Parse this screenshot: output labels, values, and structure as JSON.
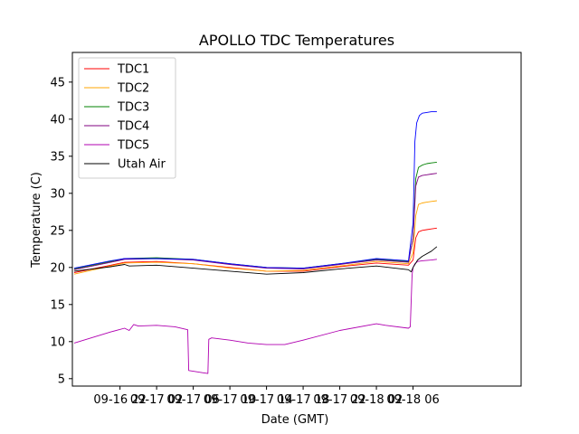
{
  "chart_data": {
    "type": "line",
    "title": "APOLLO TDC Temperatures",
    "xlabel": "Date (GMT)",
    "ylabel": "Temperature (C)",
    "xlim": [
      -5.2,
      43.8
    ],
    "ylim": [
      4,
      49
    ],
    "xticks": [
      {
        "value": 0,
        "label": "09-16 22"
      },
      {
        "value": 4,
        "label": "09-17 02"
      },
      {
        "value": 8,
        "label": "09-17 06"
      },
      {
        "value": 12,
        "label": "09-17 10"
      },
      {
        "value": 16,
        "label": "09-17 14"
      },
      {
        "value": 20,
        "label": "09-17 18"
      },
      {
        "value": 24,
        "label": "09-17 22"
      },
      {
        "value": 28,
        "label": "09-18 02"
      },
      {
        "value": 32,
        "label": "09-18 06"
      }
    ],
    "yticks": [
      5,
      10,
      15,
      20,
      25,
      30,
      35,
      40,
      45
    ],
    "legend_position": "top-left",
    "series": [
      {
        "name": "TDC1",
        "color": "#ff0000",
        "x": [
          -5,
          -1,
          0.5,
          4,
          8,
          12,
          16,
          20,
          24,
          28,
          31.5,
          32,
          32.3,
          32.6,
          33,
          33.5,
          34,
          34.6
        ],
        "y": [
          19.3,
          20.3,
          20.7,
          20.8,
          20.5,
          20,
          19.5,
          19.5,
          20.1,
          20.6,
          20.3,
          21,
          24,
          24.8,
          25,
          25.1,
          25.2,
          25.3
        ]
      },
      {
        "name": "TDC2",
        "color": "#ffa500",
        "x": [
          -5,
          -1,
          0.5,
          4,
          8,
          12,
          16,
          20,
          24,
          28,
          31.5,
          32,
          32.3,
          32.6,
          33,
          33.5,
          34,
          34.6
        ],
        "y": [
          19.1,
          20.2,
          20.6,
          20.7,
          20.5,
          19.9,
          19.5,
          19.6,
          20.2,
          20.8,
          20.5,
          22,
          27,
          28.5,
          28.7,
          28.8,
          28.9,
          29
        ]
      },
      {
        "name": "TDC3",
        "color": "#008000",
        "x": [
          -5,
          -1,
          0.5,
          4,
          8,
          12,
          16,
          20,
          24,
          28,
          31.5,
          32,
          32.3,
          32.6,
          33,
          33.5,
          34,
          34.6
        ],
        "y": [
          19.8,
          20.8,
          21.2,
          21.3,
          21.1,
          20.5,
          20,
          19.9,
          20.5,
          21.1,
          20.8,
          24,
          32,
          33.5,
          33.8,
          34,
          34.1,
          34.2
        ]
      },
      {
        "name": "TDC4",
        "color": "#800080",
        "x": [
          -5,
          -1,
          0.5,
          4,
          8,
          12,
          16,
          20,
          24,
          28,
          31.5,
          32,
          32.3,
          32.6,
          33,
          33.5,
          34,
          34.6
        ],
        "y": [
          19.7,
          20.7,
          21.1,
          21.2,
          21,
          20.4,
          19.9,
          19.8,
          20.4,
          21,
          20.7,
          24,
          31,
          32.2,
          32.4,
          32.5,
          32.6,
          32.7
        ]
      },
      {
        "name": "TDC5",
        "color": "#b000b0",
        "x": [
          -5,
          -1,
          0.5,
          1,
          1.5,
          2,
          4,
          6,
          7.4,
          7.5,
          8,
          9,
          9.6,
          9.7,
          10,
          12,
          14,
          16,
          18,
          20,
          24,
          28,
          29,
          31.5,
          31.7,
          31.9,
          32,
          32.2,
          32.5,
          33,
          34,
          34.6
        ],
        "y": [
          9.8,
          11.3,
          11.8,
          11.5,
          12.3,
          12.1,
          12.2,
          12,
          11.6,
          6.1,
          6,
          5.8,
          5.7,
          10.3,
          10.5,
          10.2,
          9.8,
          9.6,
          9.6,
          10.2,
          11.5,
          12.4,
          12.2,
          11.8,
          12,
          19,
          20,
          20.5,
          20.8,
          20.9,
          21,
          21.1
        ]
      },
      {
        "name": "Utah Air",
        "color": "#000000",
        "x": [
          -5,
          -1,
          0.5,
          1,
          4,
          8,
          12,
          16,
          20,
          24,
          28,
          31.5,
          31.8,
          32,
          32.5,
          33,
          34,
          34.6
        ],
        "y": [
          19.5,
          20.1,
          20.4,
          20.2,
          20.3,
          19.9,
          19.5,
          19.1,
          19.3,
          19.8,
          20.2,
          19.7,
          19.4,
          20,
          21,
          21.5,
          22.2,
          22.8
        ]
      },
      {
        "name": "",
        "color": "#0000ff",
        "x": [
          -5,
          -1,
          0.5,
          4,
          8,
          12,
          16,
          20,
          24,
          28,
          31.5,
          32,
          32.2,
          32.4,
          32.7,
          33,
          33.5,
          34,
          34.6
        ],
        "y": [
          19.9,
          20.9,
          21.2,
          21.2,
          21.1,
          20.5,
          20,
          19.9,
          20.5,
          21.2,
          20.9,
          26,
          37,
          39.5,
          40.5,
          40.8,
          40.9,
          41,
          41
        ]
      }
    ]
  }
}
